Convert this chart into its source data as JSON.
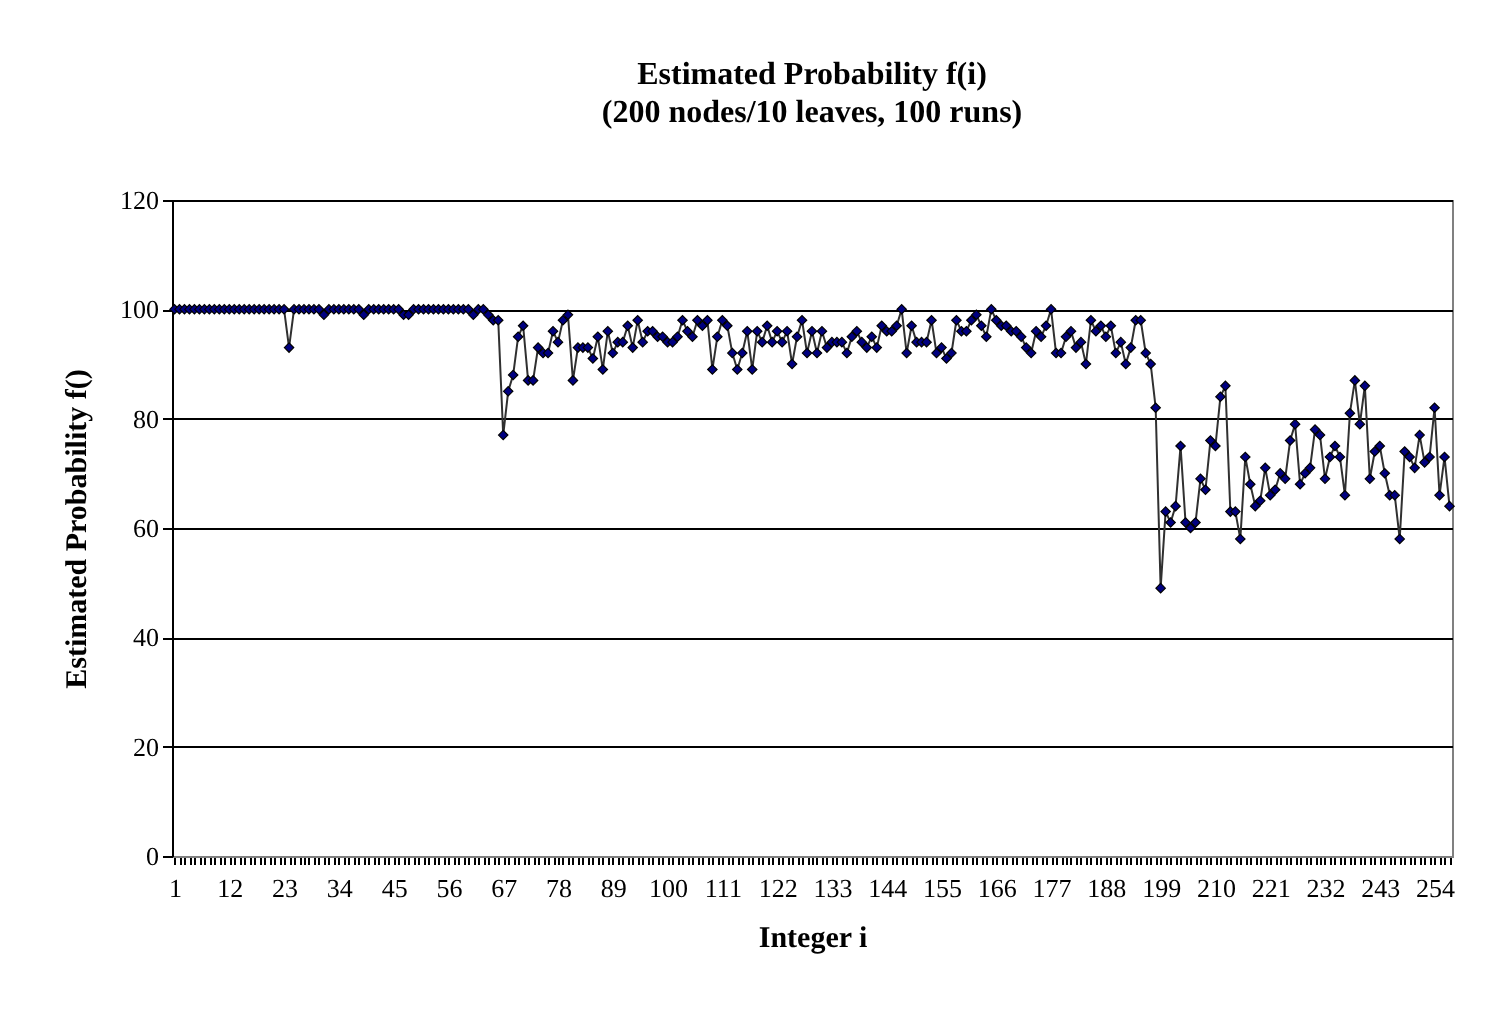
{
  "chart_data": {
    "type": "line",
    "title": "Estimated Probability  f(i)",
    "subtitle": "(200 nodes/10 leaves, 100 runs)",
    "xlabel": "Integer i",
    "ylabel": "Estimated Probability  f()",
    "categories": [
      "1",
      null,
      null,
      null,
      null,
      null,
      null,
      null,
      null,
      null,
      null,
      "12",
      null,
      null,
      null,
      null,
      null,
      null,
      null,
      null,
      null,
      null,
      "23",
      null,
      null,
      null,
      null,
      null,
      null,
      null,
      null,
      null,
      null,
      "34",
      null,
      null,
      null,
      null,
      null,
      null,
      null,
      null,
      null,
      null,
      "45",
      null,
      null,
      null,
      null,
      null,
      null,
      null,
      null,
      null,
      null,
      "56",
      null,
      null,
      null,
      null,
      null,
      null,
      null,
      null,
      null,
      null,
      "67",
      null,
      null,
      null,
      null,
      null,
      null,
      null,
      null,
      null,
      null,
      "78",
      null,
      null,
      null,
      null,
      null,
      null,
      null,
      null,
      null,
      null,
      "89",
      null,
      null,
      null,
      null,
      null,
      null,
      null,
      null,
      null,
      null,
      "100",
      null,
      null,
      null,
      null,
      null,
      null,
      null,
      null,
      null,
      null,
      "111",
      null,
      null,
      null,
      null,
      null,
      null,
      null,
      null,
      null,
      null,
      "122",
      null,
      null,
      null,
      null,
      null,
      null,
      null,
      null,
      null,
      null,
      "133",
      null,
      null,
      null,
      null,
      null,
      null,
      null,
      null,
      null,
      null,
      "144",
      null,
      null,
      null,
      null,
      null,
      null,
      null,
      null,
      null,
      null,
      "155",
      null,
      null,
      null,
      null,
      null,
      null,
      null,
      null,
      null,
      null,
      "166",
      null,
      null,
      null,
      null,
      null,
      null,
      null,
      null,
      null,
      null,
      "177",
      null,
      null,
      null,
      null,
      null,
      null,
      null,
      null,
      null,
      null,
      "188",
      null,
      null,
      null,
      null,
      null,
      null,
      null,
      null,
      null,
      null,
      "199",
      null,
      null,
      null,
      null,
      null,
      null,
      null,
      null,
      null,
      null,
      "210",
      null,
      null,
      null,
      null,
      null,
      null,
      null,
      null,
      null,
      null,
      "221",
      null,
      null,
      null,
      null,
      null,
      null,
      null,
      null,
      null,
      null,
      "232",
      null,
      null,
      null,
      null,
      null,
      null,
      null,
      null,
      null,
      null,
      "243",
      null,
      null,
      null,
      null,
      null,
      null,
      null,
      null,
      null,
      null,
      "254",
      null,
      null,
      null
    ],
    "series": [
      {
        "color": "#000080",
        "values": [
          100,
          100,
          100,
          100,
          100,
          100,
          100,
          100,
          100,
          100,
          100,
          100,
          100,
          100,
          100,
          100,
          100,
          100,
          100,
          100,
          100,
          100,
          100,
          93,
          100,
          100,
          100,
          100,
          100,
          100,
          99,
          100,
          100,
          100,
          100,
          100,
          100,
          100,
          99,
          100,
          100,
          100,
          100,
          100,
          100,
          100,
          99,
          99,
          100,
          100,
          100,
          100,
          100,
          100,
          100,
          100,
          100,
          100,
          100,
          100,
          99,
          100,
          100,
          99,
          98,
          98,
          77,
          85,
          88,
          95,
          97,
          87,
          87,
          93,
          92,
          92,
          96,
          94,
          98,
          99,
          87,
          93,
          93,
          93,
          91,
          95,
          89,
          96,
          92,
          94,
          94,
          97,
          93,
          98,
          94,
          96,
          96,
          95,
          95,
          94,
          94,
          95,
          98,
          96,
          95,
          98,
          97,
          98,
          89,
          95,
          98,
          97,
          92,
          89,
          92,
          96,
          89,
          96,
          94,
          97,
          94,
          96,
          94,
          96,
          90,
          95,
          98,
          92,
          96,
          92,
          96,
          93,
          94,
          94,
          94,
          92,
          95,
          96,
          94,
          93,
          95,
          93,
          97,
          96,
          96,
          97,
          100,
          92,
          97,
          94,
          94,
          94,
          98,
          92,
          93,
          91,
          92,
          98,
          96,
          96,
          98,
          99,
          97,
          95,
          100,
          98,
          97,
          97,
          96,
          96,
          95,
          93,
          92,
          96,
          95,
          97,
          100,
          92,
          92,
          95,
          96,
          93,
          94,
          90,
          98,
          96,
          97,
          95,
          97,
          92,
          94,
          90,
          93,
          98,
          98,
          92,
          90,
          82,
          49,
          63,
          61,
          64,
          75,
          61,
          60,
          61,
          69,
          67,
          76,
          75,
          84,
          86,
          63,
          63,
          58,
          73,
          68,
          64,
          65,
          71,
          66,
          67,
          70,
          69,
          76,
          79,
          68,
          70,
          71,
          78,
          77,
          69,
          73,
          75,
          73,
          66,
          81,
          87,
          79,
          86,
          69,
          74,
          75,
          70,
          66,
          66,
          58,
          74,
          73,
          71,
          77,
          72,
          73,
          82,
          66,
          73,
          64
        ]
      }
    ],
    "ylim": [
      0,
      120
    ],
    "yticks": [
      0,
      20,
      40,
      60,
      80,
      100,
      120
    ],
    "grid": "y",
    "legend": false,
    "marker": "diamond",
    "line_style": "solid"
  }
}
